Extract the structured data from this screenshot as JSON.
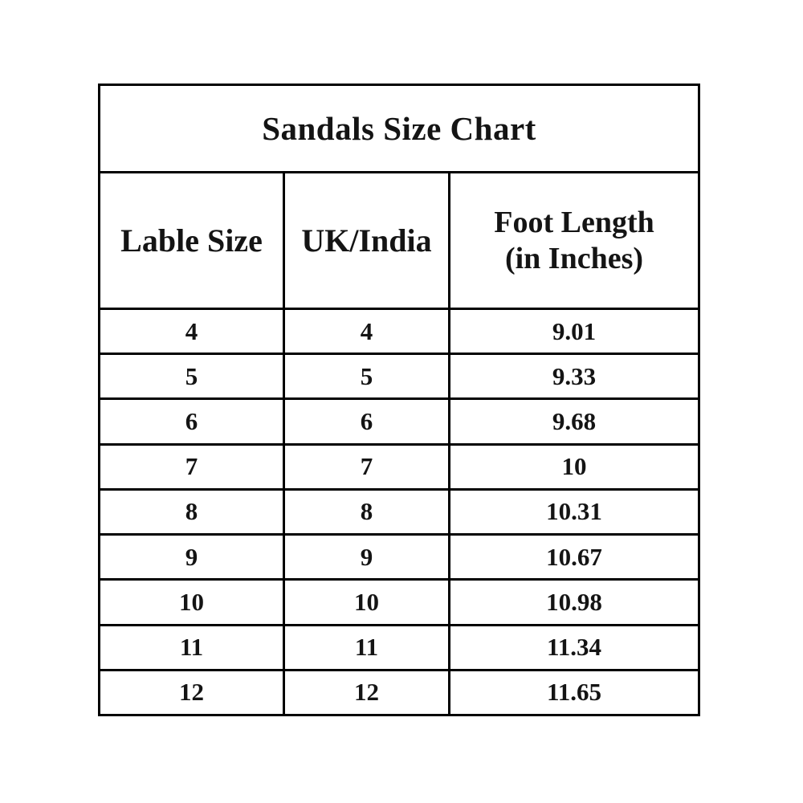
{
  "chart_data": {
    "type": "table",
    "title": "Sandals Size Chart",
    "columns": [
      "Lable Size",
      "UK/India",
      "Foot Length (in Inches)"
    ],
    "rows": [
      [
        4,
        4,
        9.01
      ],
      [
        5,
        5,
        9.33
      ],
      [
        6,
        6,
        9.68
      ],
      [
        7,
        7,
        10
      ],
      [
        8,
        8,
        10.31
      ],
      [
        9,
        9,
        10.67
      ],
      [
        10,
        10,
        10.98
      ],
      [
        11,
        11,
        11.34
      ],
      [
        12,
        12,
        11.65
      ]
    ],
    "layout": {
      "grid": "on",
      "header_rows": 2,
      "notes": "title row spans all columns; third header wraps to two lines"
    }
  },
  "table": {
    "headers": {
      "col1": "Lable Size",
      "col2": "UK/India",
      "col3_line1": "Foot Length",
      "col3_line2": "(in Inches)"
    },
    "colors": {
      "border": "#000000",
      "text": "#141414",
      "background": "#ffffff"
    }
  }
}
